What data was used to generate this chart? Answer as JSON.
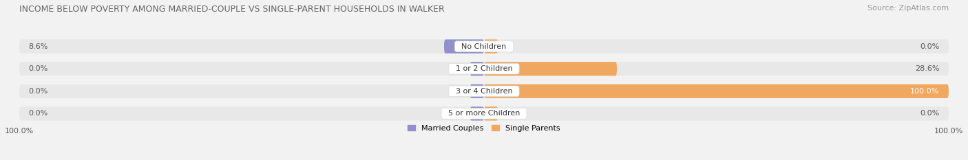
{
  "title": "INCOME BELOW POVERTY AMONG MARRIED-COUPLE VS SINGLE-PARENT HOUSEHOLDS IN WALKER",
  "source": "Source: ZipAtlas.com",
  "categories": [
    "No Children",
    "1 or 2 Children",
    "3 or 4 Children",
    "5 or more Children"
  ],
  "married_values": [
    8.6,
    0.0,
    0.0,
    0.0
  ],
  "single_values": [
    0.0,
    28.6,
    100.0,
    0.0
  ],
  "married_color": "#9090cc",
  "single_color": "#f0a860",
  "married_label": "Married Couples",
  "single_label": "Single Parents",
  "background_color": "#f2f2f2",
  "row_bg_color": "#f8f8f8",
  "bar_track_color": "#e8e8e8",
  "xlim": 100.0,
  "bar_height": 0.62,
  "figsize": [
    14.06,
    2.33
  ],
  "dpi": 100,
  "axis_label_left": "100.0%",
  "axis_label_right": "100.0%",
  "title_fontsize": 9,
  "source_fontsize": 8,
  "label_fontsize": 8,
  "value_fontsize": 8
}
